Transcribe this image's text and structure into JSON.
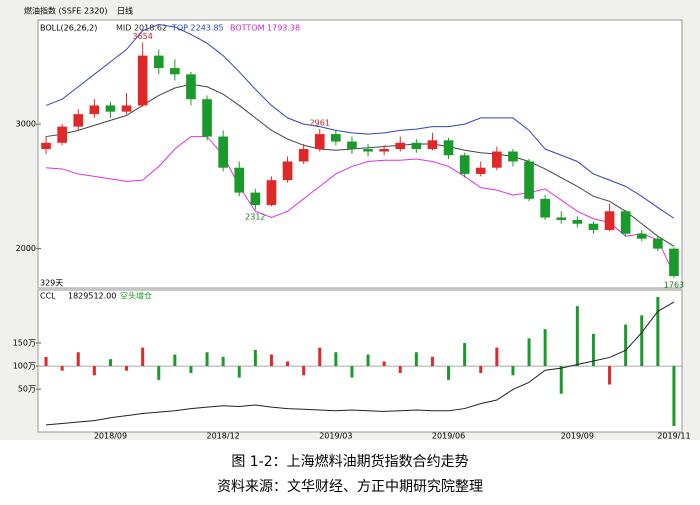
{
  "chart_data": {
    "type": "candlestick",
    "window_title": "燃油指数 (SSFE 2320)",
    "period": "日线",
    "indicator": "BOLL(26,26,2)",
    "mid_label": "MID 2018.62",
    "top_label": "TOP 2243.85",
    "bottom_label": "BOTTOM 1793.38",
    "annotations": [
      {
        "text": "3654",
        "index": 6
      },
      {
        "text": "2961",
        "index": 17
      },
      {
        "text": "2312",
        "index": 13
      },
      {
        "text": "1763",
        "index": 39
      }
    ],
    "span_label": "329天",
    "categories": [
      null,
      null,
      null,
      null,
      "2018/09",
      null,
      null,
      null,
      null,
      null,
      null,
      "2018/12",
      null,
      null,
      null,
      null,
      null,
      null,
      "2019/03",
      null,
      null,
      null,
      null,
      null,
      null,
      "2019/06",
      null,
      null,
      null,
      null,
      null,
      null,
      null,
      "2019/09",
      null,
      null,
      null,
      null,
      null,
      "2019/11"
    ],
    "candles": [
      [
        2800,
        2900,
        2760,
        2850
      ],
      [
        2850,
        3000,
        2830,
        2980
      ],
      [
        2980,
        3120,
        2950,
        3080
      ],
      [
        3080,
        3200,
        3050,
        3150
      ],
      [
        3150,
        3180,
        3050,
        3100
      ],
      [
        3100,
        3250,
        3080,
        3150
      ],
      [
        3150,
        3654,
        3140,
        3550
      ],
      [
        3550,
        3600,
        3400,
        3450
      ],
      [
        3450,
        3520,
        3350,
        3400
      ],
      [
        3400,
        3420,
        3150,
        3200
      ],
      [
        3200,
        3230,
        2870,
        2900
      ],
      [
        2900,
        2950,
        2620,
        2650
      ],
      [
        2650,
        2700,
        2420,
        2450
      ],
      [
        2450,
        2480,
        2312,
        2350
      ],
      [
        2350,
        2580,
        2340,
        2550
      ],
      [
        2550,
        2740,
        2530,
        2700
      ],
      [
        2700,
        2840,
        2680,
        2800
      ],
      [
        2800,
        2961,
        2780,
        2920
      ],
      [
        2920,
        2950,
        2830,
        2860
      ],
      [
        2860,
        2900,
        2760,
        2800
      ],
      [
        2800,
        2840,
        2740,
        2780
      ],
      [
        2780,
        2830,
        2750,
        2800
      ],
      [
        2800,
        2900,
        2780,
        2850
      ],
      [
        2850,
        2880,
        2770,
        2800
      ],
      [
        2800,
        2930,
        2790,
        2870
      ],
      [
        2870,
        2890,
        2720,
        2750
      ],
      [
        2750,
        2770,
        2570,
        2600
      ],
      [
        2600,
        2700,
        2580,
        2650
      ],
      [
        2650,
        2820,
        2630,
        2780
      ],
      [
        2780,
        2800,
        2660,
        2700
      ],
      [
        2700,
        2720,
        2380,
        2400
      ],
      [
        2400,
        2430,
        2230,
        2250
      ],
      [
        2250,
        2300,
        2200,
        2230
      ],
      [
        2230,
        2260,
        2170,
        2200
      ],
      [
        2200,
        2220,
        2120,
        2150
      ],
      [
        2150,
        2360,
        2140,
        2300
      ],
      [
        2300,
        2310,
        2100,
        2120
      ],
      [
        2120,
        2150,
        2060,
        2080
      ],
      [
        2080,
        2100,
        1980,
        2000
      ],
      [
        2000,
        2010,
        1763,
        1780
      ]
    ],
    "boll_mid": [
      2900,
      2920,
      2950,
      2990,
      3030,
      3070,
      3150,
      3230,
      3290,
      3320,
      3300,
      3240,
      3150,
      3050,
      2950,
      2880,
      2830,
      2800,
      2790,
      2800,
      2810,
      2820,
      2830,
      2840,
      2840,
      2820,
      2790,
      2770,
      2760,
      2740,
      2700,
      2640,
      2570,
      2500,
      2420,
      2380,
      2300,
      2200,
      2100,
      2019
    ],
    "boll_top": [
      3150,
      3200,
      3300,
      3400,
      3500,
      3600,
      3750,
      3800,
      3780,
      3720,
      3650,
      3550,
      3420,
      3280,
      3150,
      3050,
      3000,
      2980,
      2950,
      2930,
      2920,
      2930,
      2950,
      2960,
      2980,
      2980,
      3000,
      3050,
      3050,
      3050,
      2950,
      2800,
      2750,
      2700,
      2600,
      2550,
      2500,
      2420,
      2330,
      2244
    ],
    "boll_bottom": [
      2650,
      2640,
      2600,
      2580,
      2560,
      2540,
      2550,
      2660,
      2800,
      2900,
      2900,
      2750,
      2500,
      2300,
      2250,
      2300,
      2400,
      2500,
      2600,
      2660,
      2700,
      2710,
      2710,
      2720,
      2700,
      2660,
      2580,
      2490,
      2470,
      2430,
      2450,
      2480,
      2390,
      2300,
      2240,
      2210,
      2100,
      2120,
      2070,
      1793
    ],
    "ylim": [
      1700,
      3820
    ],
    "yticks": [
      2000,
      3000
    ],
    "ccl_label": "CCL",
    "ccl_value": "1829512.00",
    "ccl_note": "空头增仓",
    "volume": [
      1200000,
      900000,
      1300000,
      800000,
      1150000,
      900000,
      1400000,
      700000,
      1250000,
      850000,
      1300000,
      1200000,
      750000,
      1350000,
      1250000,
      1100000,
      800000,
      1400000,
      1300000,
      750000,
      1250000,
      1100000,
      850000,
      1300000,
      1200000,
      700000,
      1500000,
      850000,
      1400000,
      800000,
      1600000,
      1800000,
      400000,
      2300000,
      1700000,
      600000,
      1900000,
      2100000,
      2500000,
      -300000
    ],
    "ccl": [
      100000,
      120000,
      140000,
      160000,
      200000,
      230000,
      260000,
      280000,
      300000,
      330000,
      350000,
      370000,
      360000,
      380000,
      350000,
      330000,
      320000,
      310000,
      300000,
      310000,
      300000,
      290000,
      300000,
      310000,
      300000,
      300000,
      330000,
      400000,
      450000,
      600000,
      700000,
      870000,
      900000,
      950000,
      1000000,
      1050000,
      1150000,
      1400000,
      1700000,
      1829512
    ],
    "vol_ylim": [
      -430000,
      2650000
    ],
    "vol_yticks": [
      {
        "value": 500000,
        "label": "50万"
      },
      {
        "value": 1000000,
        "label": "100万"
      },
      {
        "value": 1500000,
        "label": "150万"
      }
    ],
    "y2lim": [
      0,
      2000000
    ],
    "up_color": "#e02828",
    "down_color": "#1a9a2a",
    "caption": "图 1-2：上海燃料油期货指数合约走势",
    "source": "资料来源：文华财经、方正中期研究院整理"
  }
}
